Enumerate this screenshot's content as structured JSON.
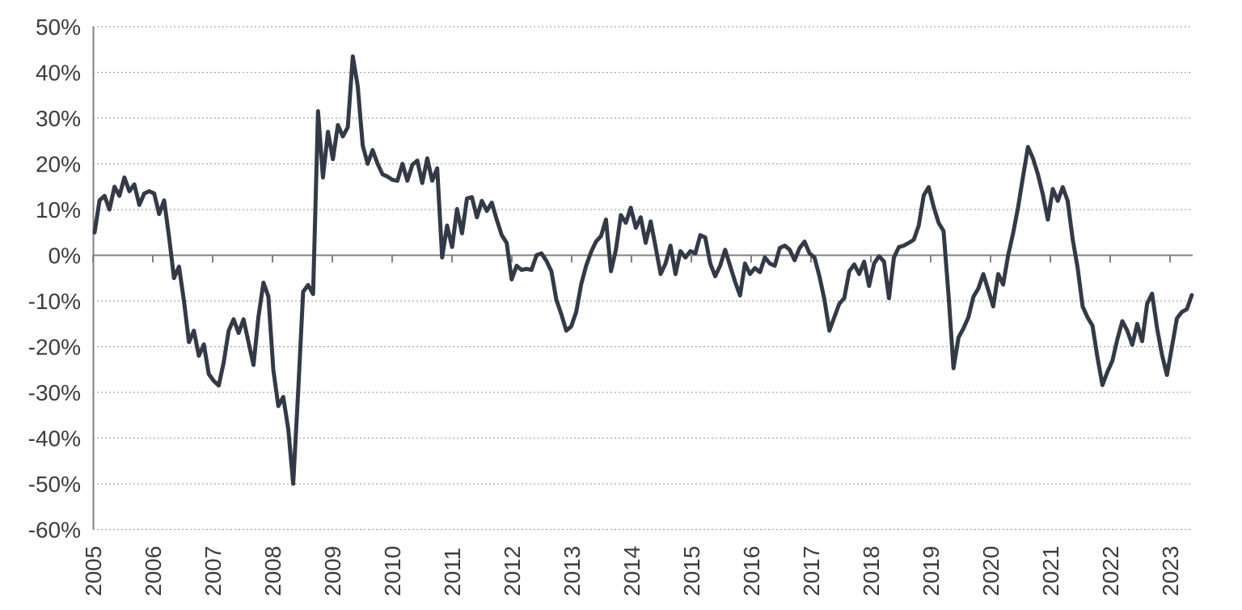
{
  "chart_data": {
    "type": "line",
    "title": "",
    "legend": "none",
    "frequency": "monthly",
    "start_month": "2005-01",
    "end_month": "2023-06",
    "x_axis": {
      "tick_labels": [
        "2005",
        "2006",
        "2007",
        "2008",
        "2009",
        "2010",
        "2011",
        "2012",
        "2013",
        "2014",
        "2015",
        "2016",
        "2017",
        "2018",
        "2019",
        "2020",
        "2021",
        "2022",
        "2023"
      ]
    },
    "y_axis": {
      "tick_labels": [
        "50%",
        "40%",
        "30%",
        "20%",
        "10%",
        "0%",
        "-10%",
        "-20%",
        "-30%",
        "-40%",
        "-50%",
        "-60%"
      ],
      "tick_values": [
        50,
        40,
        30,
        20,
        10,
        0,
        -10,
        -20,
        -30,
        -40,
        -50,
        -60
      ],
      "ylim": [
        -60,
        50
      ],
      "unit": "%"
    },
    "grid": {
      "horizontal": "dotted",
      "zero_line": "solid"
    },
    "colors": {
      "line": "#333a47",
      "grid_dotted": "#a3a3a3",
      "axis": "#808080",
      "text": "#3d3d3d",
      "background": "#ffffff"
    },
    "series": [
      {
        "color": "#333a47",
        "values_by_year": [
          {
            "year": 2005,
            "monthly": [
              5,
              12,
              13,
              10,
              15,
              13,
              17,
              14,
              15.5,
              11,
              13.5,
              14
            ]
          },
          {
            "year": 2006,
            "monthly": [
              13.5,
              9,
              12,
              4,
              -5,
              -2.5,
              -10,
              -19,
              -16.5,
              -22,
              -19.5,
              -26
            ]
          },
          {
            "year": 2007,
            "monthly": [
              -27.5,
              -28.5,
              -23.5,
              -16.5,
              -14,
              -17,
              -14,
              -19,
              -24,
              -13.5,
              -6,
              -9
            ]
          },
          {
            "year": 2008,
            "monthly": [
              -25,
              -33,
              -31,
              -38,
              -50,
              -30,
              -8,
              -6.5,
              -8.5,
              31.5,
              17,
              27
            ]
          },
          {
            "year": 2009,
            "monthly": [
              21,
              28.5,
              26,
              28,
              43.5,
              37,
              24,
              20,
              23,
              20,
              17.7,
              17.2
            ]
          },
          {
            "year": 2010,
            "monthly": [
              16.5,
              16.3,
              20,
              16.3,
              19.8,
              20.7,
              15.8,
              21.2,
              16.3,
              19,
              -0.5,
              6.5
            ]
          },
          {
            "year": 2011,
            "monthly": [
              1.8,
              10.1,
              4.8,
              12.4,
              12.7,
              8.3,
              11.9,
              9.7,
              11.5,
              7.8,
              4.4,
              2.7
            ]
          },
          {
            "year": 2012,
            "monthly": [
              -5.3,
              -2.3,
              -3.2,
              -3,
              -3.2,
              0,
              0.4,
              -1.2,
              -3.5,
              -9.7,
              -12.9,
              -16.5
            ]
          },
          {
            "year": 2013,
            "monthly": [
              -15.6,
              -12.4,
              -6.4,
              -2.3,
              0.7,
              3,
              4.2,
              7.8,
              -3.5,
              1.2,
              8.8,
              7.1
            ]
          },
          {
            "year": 2014,
            "monthly": [
              10.4,
              6,
              8.3,
              2.7,
              7.4,
              1.8,
              -4.1,
              -1.8,
              2.1,
              -4.1,
              0.9,
              -0.5
            ]
          },
          {
            "year": 2015,
            "monthly": [
              0.9,
              0.4,
              4.4,
              3.9,
              -1.8,
              -4.6,
              -2.3,
              1.2,
              -2.3,
              -5.8,
              -8.8,
              -1.8
            ]
          },
          {
            "year": 2016,
            "monthly": [
              -4.1,
              -2.8,
              -3.7,
              -0.5,
              -1.8,
              -2.3,
              1.6,
              2.1,
              1.2,
              -1.1,
              1.6,
              3
            ]
          },
          {
            "year": 2017,
            "monthly": [
              0.4,
              -0.5,
              -4.6,
              -9.7,
              -16.5,
              -13.5,
              -10.6,
              -9.4,
              -3.5,
              -2,
              -4.1,
              -1.4
            ]
          },
          {
            "year": 2018,
            "monthly": [
              -6.7,
              -1.8,
              -0.2,
              -1.4,
              -9.4,
              -0.5,
              1.8,
              2.1,
              2.7,
              3.4,
              6.5,
              13.1
            ]
          },
          {
            "year": 2019,
            "monthly": [
              14.9,
              10.6,
              7.1,
              5.3,
              -8.8,
              -24.7,
              -18,
              -16,
              -13.6,
              -9.1,
              -7.3,
              -4.1
            ]
          },
          {
            "year": 2020,
            "monthly": [
              -7.6,
              -11.2,
              -4.1,
              -6.4,
              0,
              4.8,
              10.4,
              17.2,
              23.7,
              21.2,
              17.7,
              13.3
            ]
          },
          {
            "year": 2021,
            "monthly": [
              7.8,
              14.5,
              11.9,
              14.9,
              11.9,
              3.5,
              -2.7,
              -11.2,
              -13.6,
              -15.4,
              -22.4,
              -28.4
            ]
          },
          {
            "year": 2022,
            "monthly": [
              -25.5,
              -23.1,
              -18.4,
              -14.4,
              -16.5,
              -19.6,
              -15,
              -18.8,
              -10.6,
              -8.4,
              -16,
              -21.8
            ]
          },
          {
            "year": 2023,
            "monthly": [
              -26.2,
              -20,
              -13.8,
              -12.4,
              -11.8,
              -8.7
            ]
          }
        ]
      }
    ]
  }
}
